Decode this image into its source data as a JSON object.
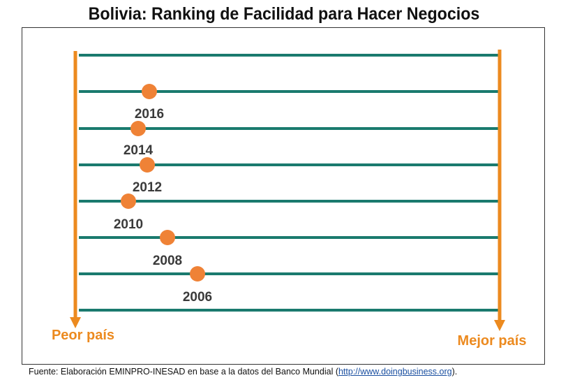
{
  "title": "Bolivia: Ranking de Facilidad para Hacer Negocios",
  "left_label": "Peor país",
  "right_label": "Mejor país",
  "source": {
    "prefix": "Fuente: Elaboración EMINPRO-INESAD en base a la datos del Banco Mundial (",
    "link": "http://www.doingbusiness.org",
    "suffix": ")."
  },
  "colors": {
    "line": "#1a7a6e",
    "arrow": "#ec8a1f",
    "dot": "#ef8236",
    "year_text": "#3a3a3a",
    "label_text": "#ec8a1f"
  },
  "chart_data": {
    "type": "scatter",
    "x_direction": "left = Peor país, right = Mejor país",
    "points": [
      {
        "year": "2016"
      },
      {
        "year": "2014"
      },
      {
        "year": "2012"
      },
      {
        "year": "2010"
      },
      {
        "year": "2008"
      },
      {
        "year": "2006"
      }
    ]
  }
}
